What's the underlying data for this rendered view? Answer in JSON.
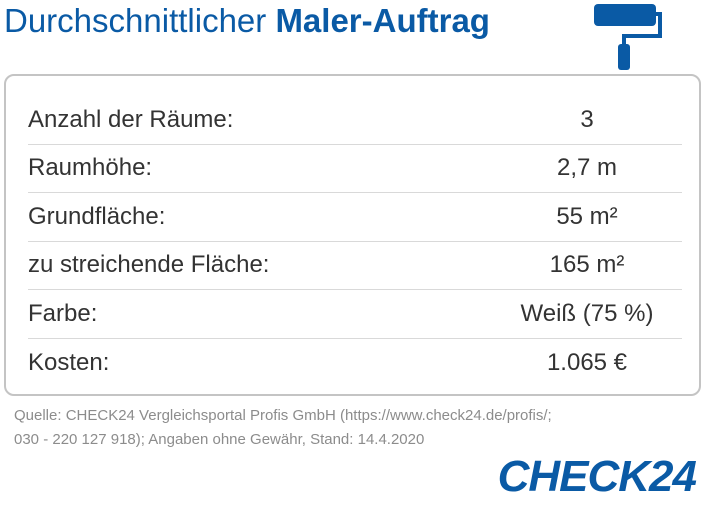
{
  "header": {
    "title_light": "Durchschnittlicher",
    "title_bold": "Maler-Auftrag"
  },
  "table": {
    "rows": [
      [
        "Anzahl der Räume:",
        "3"
      ],
      [
        "Raumhöhe:",
        "2,7 m"
      ],
      [
        "Grundfläche:",
        "55 m²"
      ],
      [
        "zu streichende Fläche:",
        "165 m²"
      ],
      [
        "Farbe:",
        "Weiß (75 %)"
      ],
      [
        "Kosten:",
        "1.065 €"
      ]
    ]
  },
  "source": [
    "Quelle: CHECK24 Vergleichsportal Profis GmbH (https://www.check24.de/profis/;",
    "030 - 220 127 918); Angaben ohne Gewähr, Stand: 14.4.2020"
  ],
  "logo": "CHECK24"
}
